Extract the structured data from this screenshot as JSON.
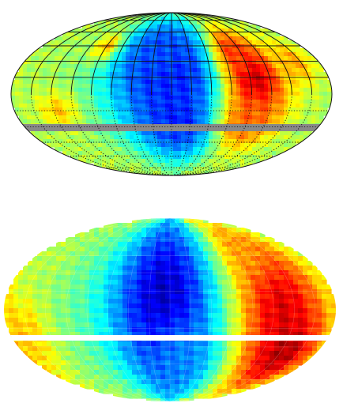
{
  "figure": {
    "panels": [
      {
        "id": "top",
        "projection": "mollweide",
        "graticule": "on",
        "graticule_style_north": "solid",
        "graticule_style_south": "dotted",
        "equator_band_color": "#888888",
        "blobs": [
          {
            "lon": 0,
            "lat": 20,
            "level": 0.12,
            "size": [
              75,
              55
            ]
          },
          {
            "lon": 10,
            "lat": -25,
            "level": 0.15,
            "size": [
              60,
              40
            ]
          },
          {
            "lon": -15,
            "lat": 40,
            "level": 0.2,
            "size": [
              45,
              30
            ]
          },
          {
            "lon": 95,
            "lat": 12,
            "level": 0.97,
            "size": [
              34,
              42
            ]
          },
          {
            "lon": 80,
            "lat": 40,
            "level": 0.82,
            "size": [
              26,
              24
            ]
          },
          {
            "lon": 90,
            "lat": -25,
            "level": 0.78,
            "size": [
              35,
              28
            ]
          },
          {
            "lon": -90,
            "lat": 45,
            "level": 0.7,
            "size": [
              18,
              14
            ]
          },
          {
            "lon": -130,
            "lat": -15,
            "level": 0.68,
            "size": [
              22,
              16
            ]
          },
          {
            "lon": 150,
            "lat": 30,
            "level": 0.72,
            "size": [
              20,
              20
            ]
          }
        ]
      },
      {
        "id": "bottom",
        "projection": "mollweide",
        "graticule": "faint",
        "equator_band_color": "#ffffff",
        "blobs": [
          {
            "lon": -5,
            "lat": 5,
            "level": 0.05,
            "size": [
              65,
              90
            ]
          },
          {
            "lon": 15,
            "lat": -40,
            "level": 0.25,
            "size": [
              45,
              35
            ]
          },
          {
            "lon": 120,
            "lat": 10,
            "level": 0.9,
            "size": [
              50,
              65
            ]
          },
          {
            "lon": 140,
            "lat": -35,
            "level": 0.95,
            "size": [
              40,
              35
            ]
          },
          {
            "lon": 100,
            "lat": 50,
            "level": 0.72,
            "size": [
              30,
              25
            ]
          },
          {
            "lon": -160,
            "lat": -20,
            "level": 0.68,
            "size": [
              25,
              30
            ]
          },
          {
            "lon": -150,
            "lat": 40,
            "level": 0.55,
            "size": [
              20,
              20
            ]
          }
        ]
      }
    ],
    "colormap": "jet"
  }
}
